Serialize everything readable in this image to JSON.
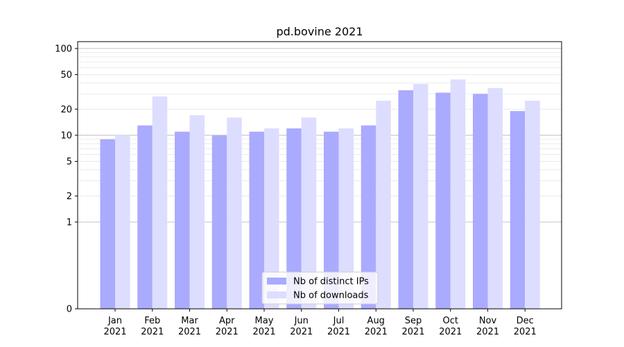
{
  "chart_data": {
    "type": "bar",
    "title": "pd.bovine 2021",
    "xlabel": "",
    "ylabel": "",
    "yscale": "symlog",
    "ylim": [
      0,
      120
    ],
    "yticks": [
      0,
      1,
      2,
      5,
      10,
      20,
      50,
      100
    ],
    "ytick_labels": [
      "0",
      "1",
      "2",
      "5",
      "10",
      "20",
      "50",
      "100"
    ],
    "grid": true,
    "legend_position": "bottom-center",
    "categories": [
      [
        "Jan",
        "2021"
      ],
      [
        "Feb",
        "2021"
      ],
      [
        "Mar",
        "2021"
      ],
      [
        "Apr",
        "2021"
      ],
      [
        "May",
        "2021"
      ],
      [
        "Jun",
        "2021"
      ],
      [
        "Jul",
        "2021"
      ],
      [
        "Aug",
        "2021"
      ],
      [
        "Sep",
        "2021"
      ],
      [
        "Oct",
        "2021"
      ],
      [
        "Nov",
        "2021"
      ],
      [
        "Dec",
        "2021"
      ]
    ],
    "series": [
      {
        "name": "Nb of distinct IPs",
        "color": "#aaaaff",
        "values": [
          9,
          13,
          11,
          10,
          11,
          12,
          11,
          13,
          33,
          31,
          30,
          19
        ]
      },
      {
        "name": "Nb of downloads",
        "color": "#ddddff",
        "values": [
          10,
          28,
          17,
          16,
          12,
          16,
          12,
          25,
          39,
          44,
          35,
          25
        ]
      }
    ]
  }
}
